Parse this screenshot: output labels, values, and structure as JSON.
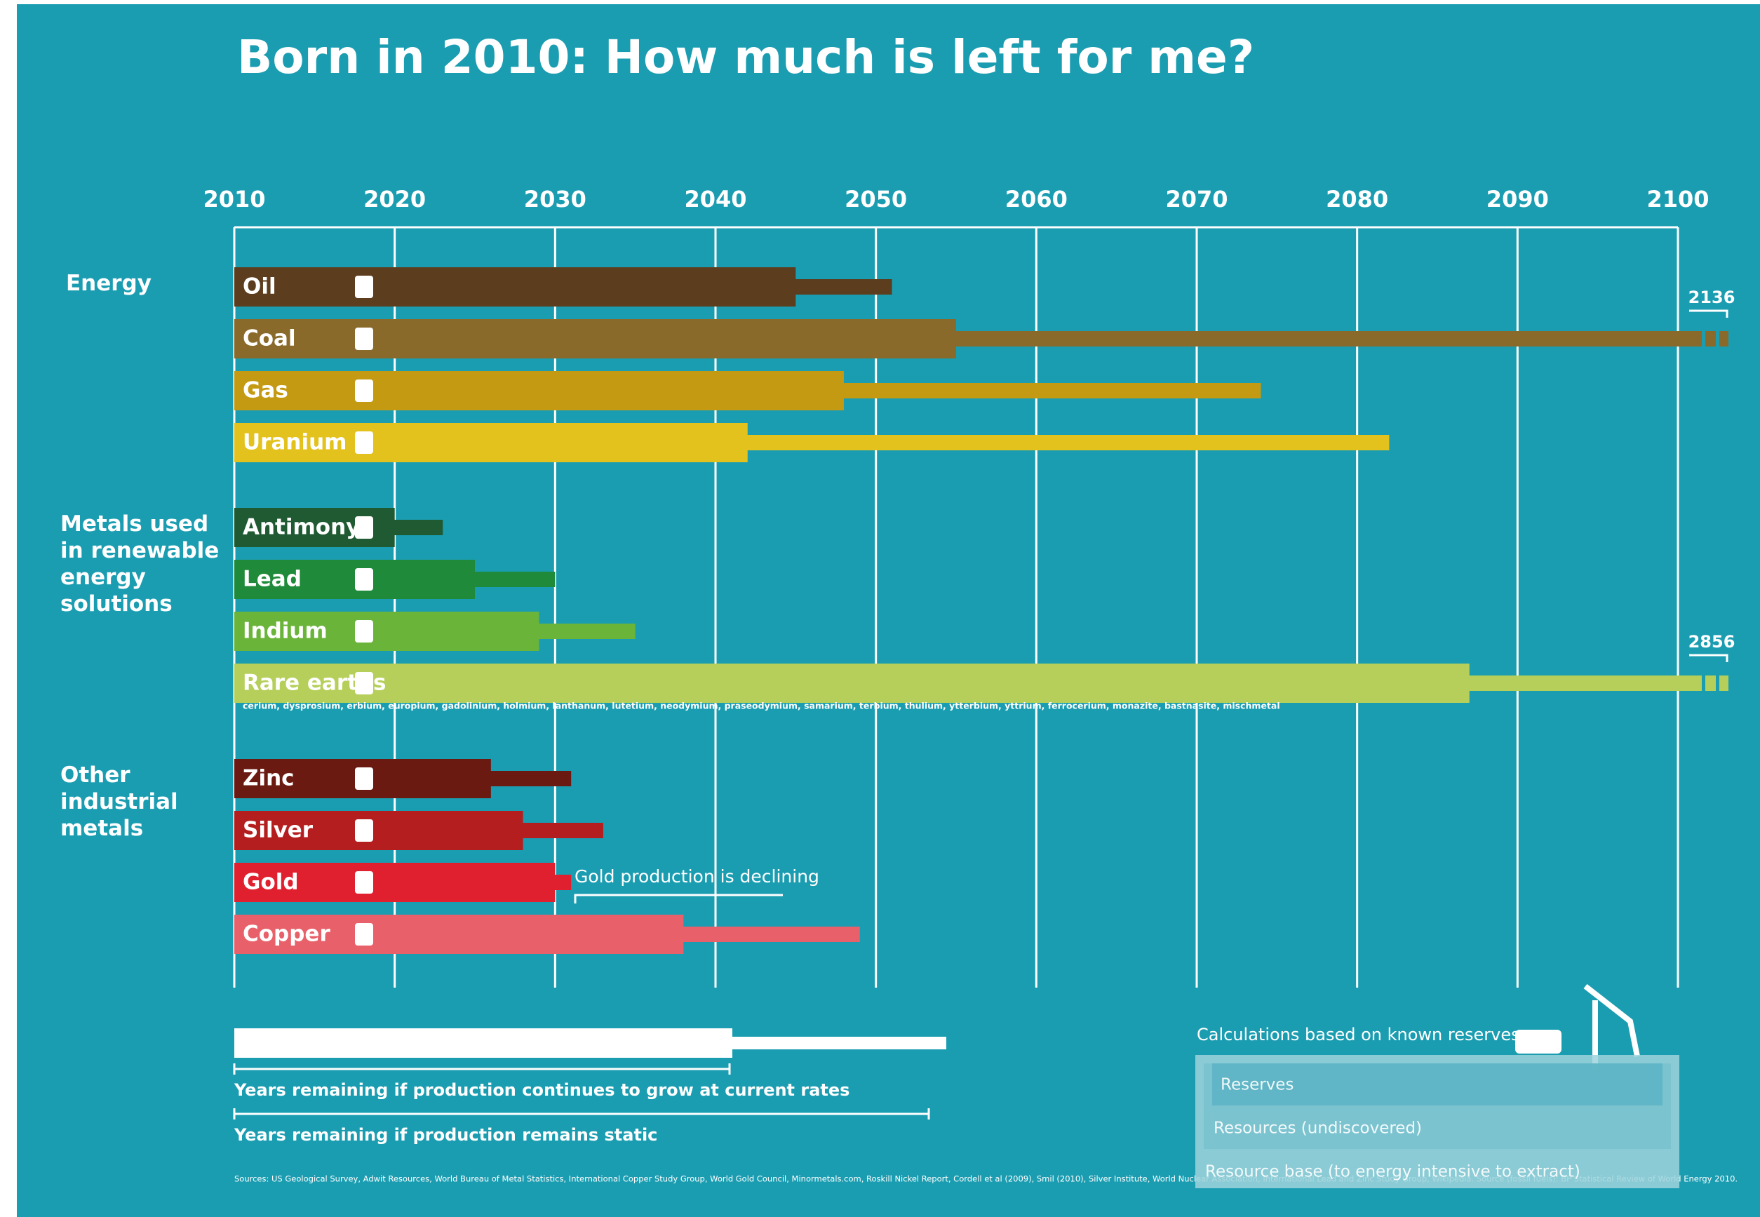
{
  "chart_data": {
    "type": "bar",
    "title": "Born in 2010: How much is left for me?",
    "xlim": [
      2010,
      2100
    ],
    "xticks": [
      2010,
      2020,
      2030,
      2040,
      2050,
      2060,
      2070,
      2080,
      2090,
      2100
    ],
    "grid": true,
    "groups": [
      {
        "name": "Energy",
        "categories": [
          "Oil",
          "Coal",
          "Gas",
          "Uranium"
        ]
      },
      {
        "name": "Metals used in renewable energy solutions",
        "categories": [
          "Antimony",
          "Lead",
          "Indium",
          "Rare earths"
        ]
      },
      {
        "name": "Other industrial metals",
        "categories": [
          "Zinc",
          "Silver",
          "Gold",
          "Copper"
        ]
      }
    ],
    "colors": [
      "#5c3d1e",
      "#8a6a2a",
      "#c49a12",
      "#e3c21e",
      "#1f5a32",
      "#1f8a3a",
      "#6ab43a",
      "#b5cf5a",
      "#6b1a12",
      "#b51e1e",
      "#e0202e",
      "#e8606a"
    ],
    "series": [
      {
        "name": "Years remaining if production continues to grow at current rates",
        "values": [
          2045,
          2055,
          2048,
          2042,
          2020,
          2025,
          2029,
          2087,
          2026,
          2028,
          2030,
          2038
        ]
      },
      {
        "name": "Years remaining if production remains static",
        "values": [
          2051,
          2136,
          2074,
          2082,
          2023,
          2030,
          2035,
          2856,
          2031,
          2033,
          2031,
          2049
        ]
      }
    ],
    "rare_earths_note": "cerium, dysprosium, erbium, europium, gadolinium, holmium, lanthanum, lutetium, neodymium, praseodymium, samarium, terbium, thulium, ytterbium, yttrium, ferrocerium, monazite, bastnasite, mischmetal",
    "annotation": "Gold production is declining",
    "reserves_box": {
      "title": "Calculations based on known reserves:",
      "levels": [
        "Reserves",
        "Resources (undiscovered)",
        "Resource base (to energy intensive to extract)"
      ]
    },
    "sources": "Sources: US Geological Survey, Adwit Resources, World Bureau of Metal Statistics, International Copper Study Group, World Gold Council, Minormetals.com, Roskill Nickel Report, Cordell et al (2009), Smil (2010), Silver Institute, World Nuclear Association, International Lead and Zinc Study Group, Wikipedia. Source (fossil fuels): BP Statistical Review of World Energy 2010."
  }
}
